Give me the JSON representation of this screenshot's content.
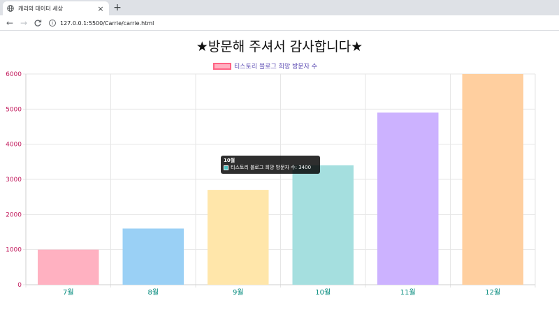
{
  "browser": {
    "tab_title": "캐리의 데이터 세상",
    "close_glyph": "×",
    "new_tab_glyph": "+",
    "url": "127.0.0.1:5500/Carrie/carrie.html",
    "back_glyph": "←",
    "forward_glyph": "→",
    "reload_glyph": "C",
    "info_glyph": "i"
  },
  "page": {
    "title": "★방문해 주셔서 감사합니다★"
  },
  "tooltip": {
    "title": "10월",
    "text": "티스토리 블로그 희망 방문자 수: 3400"
  },
  "chart_data": {
    "type": "bar",
    "categories": [
      "7월",
      "8월",
      "9월",
      "10월",
      "11월",
      "12월"
    ],
    "series": [
      {
        "name": "티스토리 블로그 희망 방문자 수",
        "values": [
          1000,
          1600,
          2700,
          3400,
          4900,
          6000
        ]
      }
    ],
    "ylim": [
      0,
      6000
    ],
    "yticks": [
      0,
      1000,
      2000,
      3000,
      4000,
      5000,
      6000
    ],
    "grid": true,
    "legend": "top",
    "colors": [
      "#ffb1c1",
      "#9ad0f5",
      "#ffe6aa",
      "#a5dfdf",
      "#ccb2ff",
      "#ffcf9f"
    ],
    "tick_color_y": "#c2185b",
    "tick_color_x": "#00897b"
  }
}
